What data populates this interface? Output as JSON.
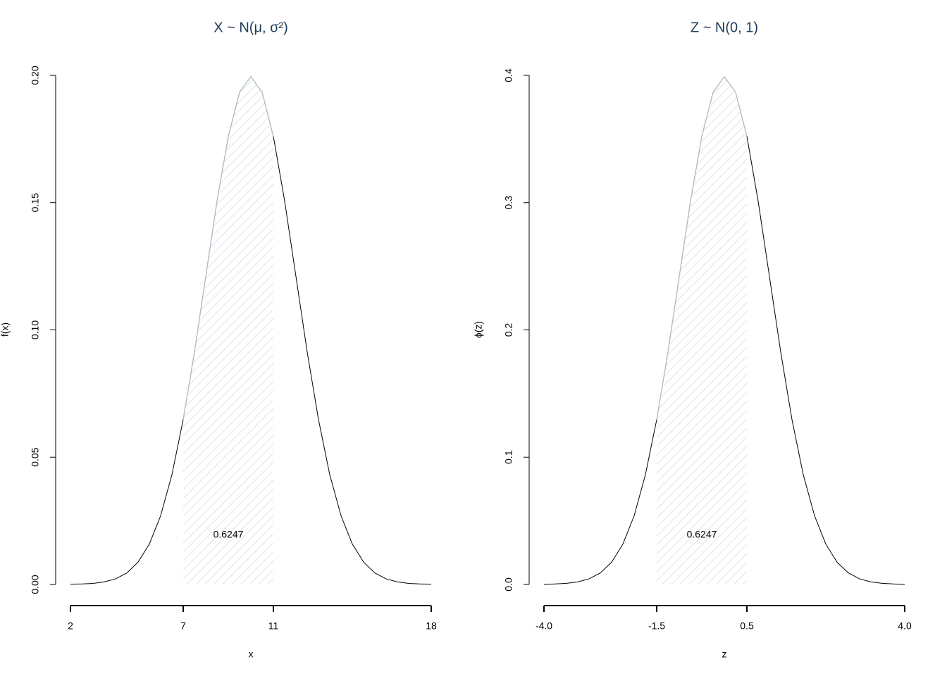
{
  "chart_data": [
    {
      "type": "line",
      "title": "X ~ N(μ, σ²)",
      "xlabel": "x",
      "ylabel": "f(x)",
      "x": [
        2,
        2.5,
        3,
        3.5,
        4,
        4.5,
        5,
        5.5,
        6,
        6.5,
        7,
        7.5,
        8,
        8.5,
        9,
        9.5,
        10,
        10.5,
        11,
        11.5,
        12,
        12.5,
        13,
        13.5,
        14,
        14.5,
        15,
        15.5,
        16,
        16.5,
        17,
        17.5,
        18
      ],
      "values": [
        0.0001,
        0.0002,
        0.0004,
        0.001,
        0.0022,
        0.0045,
        0.0088,
        0.0159,
        0.027,
        0.0431,
        0.0648,
        0.0913,
        0.121,
        0.1506,
        0.176,
        0.1934,
        0.1995,
        0.1934,
        0.176,
        0.1506,
        0.121,
        0.0913,
        0.0648,
        0.0431,
        0.027,
        0.0159,
        0.0088,
        0.0045,
        0.0022,
        0.001,
        0.0004,
        0.0002,
        0.0001
      ],
      "xlim": [
        2,
        18
      ],
      "ylim": [
        0,
        0.2
      ],
      "xticks": [
        2,
        7,
        11,
        18
      ],
      "yticks": [
        {
          "value": 0,
          "label": "0.00"
        },
        {
          "value": 0.05,
          "label": "0.05"
        },
        {
          "value": 0.1,
          "label": "0.10"
        },
        {
          "value": 0.15,
          "label": "0.15"
        },
        {
          "value": 0.2,
          "label": "0.20"
        }
      ],
      "shade": [
        7,
        11
      ],
      "shaded_area": 0.6247,
      "color": "#000000",
      "shade_color": "#c5d3dd"
    },
    {
      "type": "line",
      "title": "Z ~ N(0, 1)",
      "xlabel": "z",
      "ylabel": "ϕ(z)",
      "x": [
        -4,
        -3.75,
        -3.5,
        -3.25,
        -3,
        -2.75,
        -2.5,
        -2.25,
        -2,
        -1.75,
        -1.5,
        -1.25,
        -1,
        -0.75,
        -0.5,
        -0.25,
        0,
        0.25,
        0.5,
        0.75,
        1,
        1.25,
        1.5,
        1.75,
        2,
        2.25,
        2.5,
        2.75,
        3,
        3.25,
        3.5,
        3.75,
        4
      ],
      "values": [
        0.0001,
        0.0004,
        0.0009,
        0.002,
        0.0044,
        0.0091,
        0.0175,
        0.0317,
        0.054,
        0.0863,
        0.1295,
        0.1826,
        0.242,
        0.3011,
        0.3521,
        0.3867,
        0.3989,
        0.3867,
        0.3521,
        0.3011,
        0.242,
        0.1826,
        0.1295,
        0.0863,
        0.054,
        0.0317,
        0.0175,
        0.0091,
        0.0044,
        0.002,
        0.0009,
        0.0004,
        0.0001
      ],
      "xlim": [
        -4,
        4
      ],
      "ylim": [
        0,
        0.4
      ],
      "xticks": [
        {
          "value": -4,
          "label": "-4.0"
        },
        -1.5,
        0.5,
        {
          "value": 4,
          "label": "4.0"
        }
      ],
      "yticks": [
        {
          "value": 0,
          "label": "0.0"
        },
        0.1,
        0.2,
        0.3,
        0.4
      ],
      "shade": [
        -1.5,
        0.5
      ],
      "shaded_area": 0.6247,
      "color": "#000000",
      "shade_color": "#c5d3dd"
    }
  ]
}
